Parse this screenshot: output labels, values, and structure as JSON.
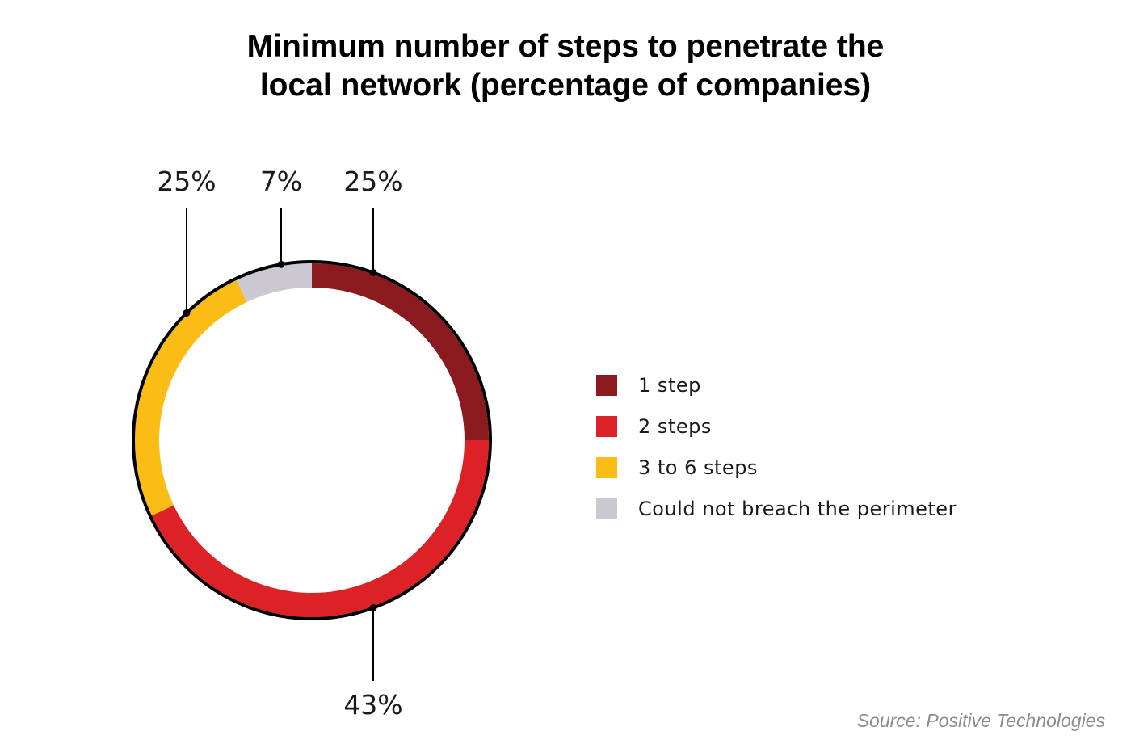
{
  "chart_data": {
    "type": "pie",
    "variant": "donut",
    "title_lines": [
      "Minimum number of steps to penetrate the",
      "local network (percentage of companies)"
    ],
    "slices": [
      {
        "label": "1 step",
        "value": 25,
        "value_label": "25%",
        "color": "#8b1a1e"
      },
      {
        "label": "2 steps",
        "value": 43,
        "value_label": "43%",
        "color": "#dc2127"
      },
      {
        "label": "3 to 6 steps",
        "value": 25,
        "value_label": "25%",
        "color": "#fbbc16"
      },
      {
        "label": "Could not breach the perimeter",
        "value": 7,
        "value_label": "7%",
        "color": "#cbc8d1"
      }
    ],
    "legend_position": "right",
    "source": "Source: Positive Technologies"
  }
}
